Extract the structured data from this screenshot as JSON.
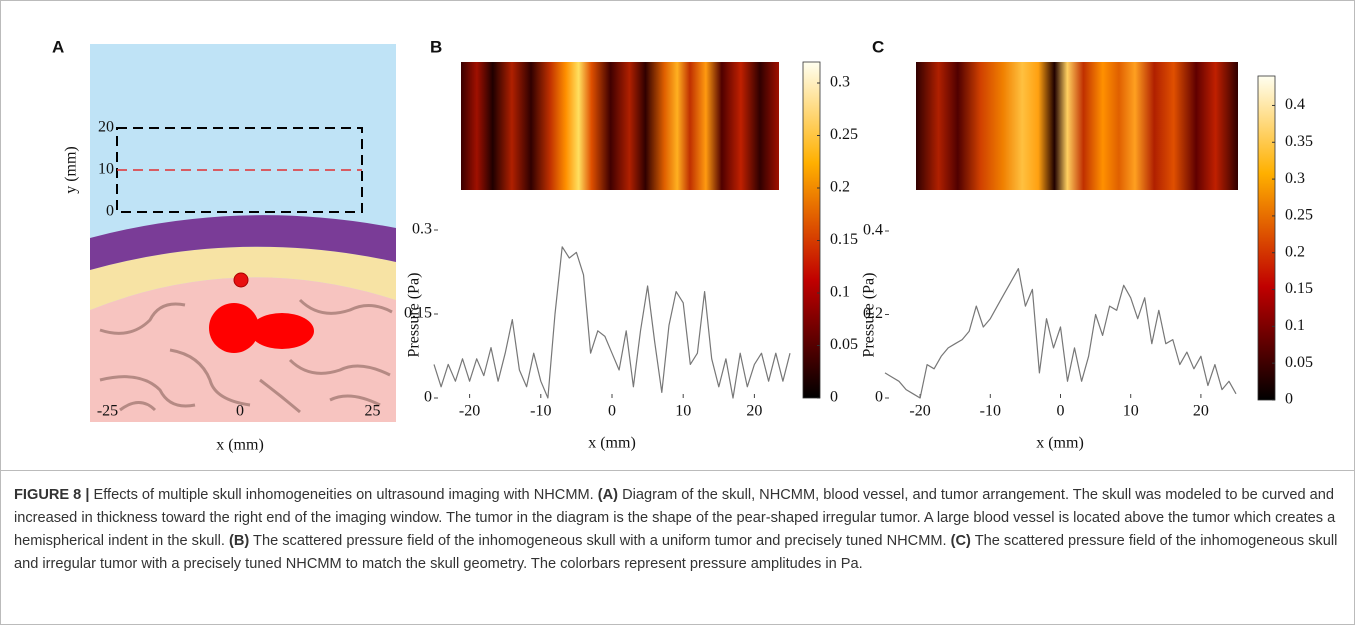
{
  "diagram": {
    "label": "A",
    "ylabel": "y (mm)",
    "xlabel": "x (mm)",
    "yticks": [
      0,
      10,
      20
    ],
    "xticks": [
      -25,
      0,
      25
    ]
  },
  "chart_data": [
    {
      "type": "line",
      "label": "B",
      "ylabel": "Pressure (Pa)",
      "xlabel": "x (mm)",
      "color": "#777777",
      "x": [
        -25,
        -24,
        -23,
        -22,
        -21,
        -20,
        -19,
        -18,
        -17,
        -16,
        -15,
        -14,
        -13,
        -12,
        -11,
        -10,
        -9,
        -8,
        -7,
        -6,
        -5,
        -4,
        -3,
        -2,
        -1,
        0,
        1,
        2,
        3,
        4,
        5,
        6,
        7,
        8,
        9,
        10,
        11,
        12,
        13,
        14,
        15,
        16,
        17,
        18,
        19,
        20,
        21,
        22,
        23,
        24,
        25
      ],
      "values": [
        0.06,
        0.02,
        0.06,
        0.03,
        0.07,
        0.03,
        0.07,
        0.04,
        0.09,
        0.03,
        0.08,
        0.14,
        0.05,
        0.02,
        0.08,
        0.03,
        0.0,
        0.15,
        0.27,
        0.25,
        0.26,
        0.22,
        0.08,
        0.12,
        0.11,
        0.08,
        0.05,
        0.12,
        0.02,
        0.12,
        0.2,
        0.1,
        0.01,
        0.13,
        0.19,
        0.17,
        0.06,
        0.08,
        0.19,
        0.07,
        0.02,
        0.07,
        0.0,
        0.08,
        0.02,
        0.06,
        0.08,
        0.03,
        0.08,
        0.03,
        0.08
      ],
      "xlim": [
        -25,
        25
      ],
      "ylim": [
        0,
        0.3
      ],
      "xticks": [
        -20,
        -10,
        0,
        10,
        20
      ],
      "yticks": [
        0,
        0.15,
        0.3
      ],
      "colorbar": {
        "lim": [
          0,
          0.32
        ],
        "ticks": [
          0,
          0.05,
          0.1,
          0.15,
          0.2,
          0.25,
          0.3
        ]
      }
    },
    {
      "type": "line",
      "label": "C",
      "ylabel": "Pressure (Pa)",
      "xlabel": "x (mm)",
      "color": "#777777",
      "x": [
        -25,
        -24,
        -23,
        -22,
        -21,
        -20,
        -19,
        -18,
        -17,
        -16,
        -15,
        -14,
        -13,
        -12,
        -11,
        -10,
        -9,
        -8,
        -7,
        -6,
        -5,
        -4,
        -3,
        -2,
        -1,
        0,
        1,
        2,
        3,
        4,
        5,
        6,
        7,
        8,
        9,
        10,
        11,
        12,
        13,
        14,
        15,
        16,
        17,
        18,
        19,
        20,
        21,
        22,
        23,
        24,
        25
      ],
      "values": [
        0.06,
        0.05,
        0.04,
        0.02,
        0.01,
        0.0,
        0.08,
        0.07,
        0.1,
        0.12,
        0.13,
        0.14,
        0.16,
        0.22,
        0.17,
        0.19,
        0.22,
        0.25,
        0.28,
        0.31,
        0.22,
        0.26,
        0.06,
        0.19,
        0.12,
        0.17,
        0.04,
        0.12,
        0.04,
        0.1,
        0.2,
        0.15,
        0.22,
        0.21,
        0.27,
        0.24,
        0.19,
        0.24,
        0.13,
        0.21,
        0.13,
        0.14,
        0.08,
        0.11,
        0.07,
        0.1,
        0.03,
        0.08,
        0.02,
        0.04,
        0.01
      ],
      "xlim": [
        -25,
        25
      ],
      "ylim": [
        0,
        0.4
      ],
      "xticks": [
        -20,
        -10,
        0,
        10,
        20
      ],
      "yticks": [
        0,
        0.2,
        0.4
      ],
      "colorbar": {
        "lim": [
          0,
          0.44
        ],
        "ticks": [
          0,
          0.05,
          0.1,
          0.15,
          0.2,
          0.25,
          0.3,
          0.35,
          0.4
        ]
      }
    }
  ],
  "caption": [
    "FIGURE 8 |",
    "Effects of multiple skull inhomogeneities on ultrasound imaging with NHCMM.",
    "(A)",
    "Diagram of the skull, NHCMM, blood vessel, and tumor arrangement. The skull was modeled to be curved and increased in thickness toward the right end of the imaging window. The tumor in the diagram is the shape of the pear-shaped irregular tumor. A large blood vessel is located above the tumor which creates a hemispherical indent in the skull.",
    "(B)",
    "The scattered pressure field of the inhomogeneous skull with a uniform tumor and precisely tuned NHCMM.",
    "(C)",
    "The scattered pressure field of the inhomogeneous skull and irregular tumor with a precisely tuned NHCMM to match the skull geometry. The colorbars represent pressure amplitudes in Pa."
  ]
}
